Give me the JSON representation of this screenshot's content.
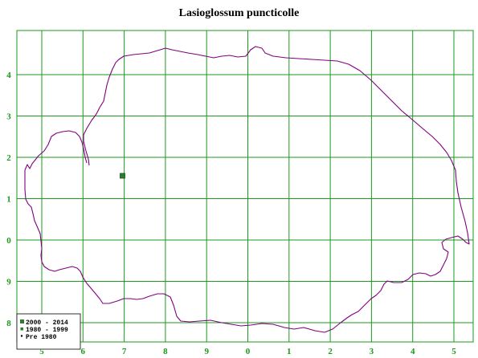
{
  "title": "Lasioglossum puncticolle",
  "colors": {
    "grid": "#1a9a1a",
    "coastline": "#800080",
    "record_2000_2014": "#2e7d2e",
    "record_1980_1999": "#2e7d2e",
    "record_pre_1980": "#000000"
  },
  "grid": {
    "x_labels": [
      "5",
      "6",
      "7",
      "8",
      "9",
      "0",
      "1",
      "2",
      "3",
      "4",
      "5"
    ],
    "y_labels": [
      "4",
      "3",
      "2",
      "1",
      "0",
      "9",
      "8"
    ]
  },
  "legend": [
    {
      "label": "2000 - 2014",
      "marker": "large-square"
    },
    {
      "label": "1980 - 1999",
      "marker": "small-square"
    },
    {
      "label": "Pre 1980",
      "marker": "dot"
    }
  ],
  "records": [
    {
      "period": "2000 - 2014",
      "grid_x": "7",
      "grid_y": "1"
    }
  ]
}
